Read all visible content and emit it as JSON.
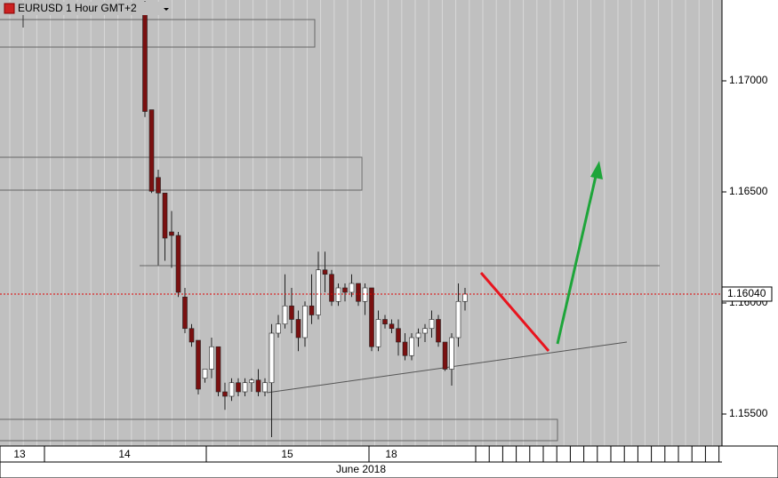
{
  "chart_data": {
    "type": "candlestick",
    "title": "EURUSD 1 Hour GMT+2",
    "open": [
      1.1735,
      1.1687,
      1.16565,
      1.16495,
      1.1632,
      1.16304,
      1.16027,
      1.15885,
      1.15832,
      1.15661,
      1.15702,
      1.15803,
      1.156,
      1.1558,
      1.15641,
      1.156,
      1.15641,
      1.15653,
      1.156,
      1.15641,
      1.15864,
      1.15905,
      1.15987,
      1.15926,
      1.15844,
      1.15987,
      1.15946,
      1.16149,
      1.16129,
      1.16007,
      1.16068,
      1.16048,
      1.16088,
      1.16007,
      1.16068,
      1.15803,
      1.15926,
      1.15905,
      1.15885,
      1.15824,
      1.15763,
      1.15844,
      1.15864,
      1.15885,
      1.15926,
      1.15824,
      1.15702,
      1.15844,
      1.16007
    ],
    "high": [
      1.1736,
      1.1687,
      1.166,
      1.16495,
      1.16414,
      1.1632,
      1.16068,
      1.15905,
      1.15832,
      1.15702,
      1.15844,
      1.15803,
      1.15641,
      1.15661,
      1.15661,
      1.15661,
      1.15661,
      1.15702,
      1.15661,
      1.15905,
      1.15946,
      1.16129,
      1.16068,
      1.15966,
      1.16007,
      1.16129,
      1.16231,
      1.16231,
      1.16149,
      1.16088,
      1.16088,
      1.16129,
      1.16088,
      1.16088,
      1.16068,
      1.15966,
      1.15946,
      1.15926,
      1.15926,
      1.15864,
      1.15864,
      1.15885,
      1.15905,
      1.15966,
      1.15946,
      1.15824,
      1.15864,
      1.16088,
      1.16068
    ],
    "low": [
      1.16837,
      1.16495,
      1.1617,
      1.1619,
      1.16158,
      1.16027,
      1.15864,
      1.15803,
      1.15588,
      1.15641,
      1.15661,
      1.1558,
      1.15519,
      1.15559,
      1.1558,
      1.1558,
      1.156,
      1.1558,
      1.1558,
      1.15396,
      1.15844,
      1.15885,
      1.15864,
      1.15783,
      1.15803,
      1.15905,
      1.15926,
      1.16048,
      1.15987,
      1.15987,
      1.16007,
      1.16027,
      1.15987,
      1.15946,
      1.15783,
      1.15783,
      1.15885,
      1.15864,
      1.15763,
      1.15742,
      1.15742,
      1.15803,
      1.15824,
      1.15844,
      1.15803,
      1.15694,
      1.15628,
      1.15803,
      1.15966
    ],
    "close": [
      1.16862,
      1.16503,
      1.16495,
      1.16292,
      1.16304,
      1.16048,
      1.15885,
      1.15824,
      1.15612,
      1.15702,
      1.15803,
      1.156,
      1.1558,
      1.15641,
      1.156,
      1.15641,
      1.15653,
      1.156,
      1.15641,
      1.15864,
      1.15905,
      1.15987,
      1.15926,
      1.15844,
      1.15987,
      1.15946,
      1.16149,
      1.16129,
      1.16007,
      1.16068,
      1.16048,
      1.16088,
      1.16007,
      1.16068,
      1.15803,
      1.15926,
      1.15905,
      1.15885,
      1.15824,
      1.15763,
      1.15844,
      1.15864,
      1.15885,
      1.15926,
      1.15824,
      1.15702,
      1.15844,
      1.16007,
      1.1604
    ],
    "up_color": "#ffffff",
    "down_color": "#7a1010",
    "ylim": [
      1.17364,
      1.15356
    ],
    "yticks": [
      {
        "value": 1.17,
        "label": "1.17000"
      },
      {
        "value": 1.165,
        "label": "1.16500"
      },
      {
        "value": 1.16,
        "label": "1.16000"
      },
      {
        "value": 1.155,
        "label": "1.15500"
      }
    ],
    "current_price": {
      "value": 1.1604,
      "label": "1.16040"
    },
    "day_labels": [
      "13",
      "14",
      "15",
      "18"
    ],
    "month_label": "June 2018"
  }
}
